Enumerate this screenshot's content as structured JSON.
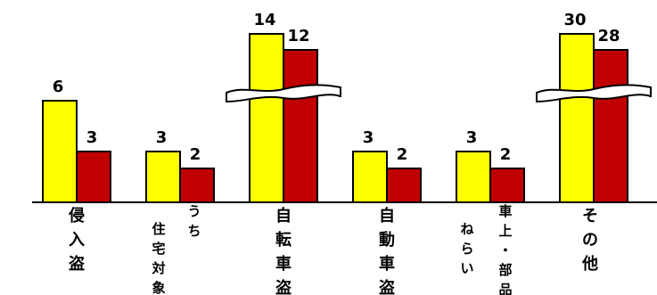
{
  "chart_data": {
    "type": "bar",
    "axis_break": true,
    "legend": "none",
    "grid": false,
    "colors": {
      "series_a": "#ffff00",
      "series_b": "#c00000",
      "outline": "#000000"
    },
    "categories": [
      {
        "label_lines": [
          "侵",
          "入",
          "盗"
        ]
      },
      {
        "label_lines": [
          "う",
          "ち",
          "住",
          "宅",
          "対",
          "象"
        ]
      },
      {
        "label_lines": [
          "自",
          "転",
          "車",
          "盗"
        ]
      },
      {
        "label_lines": [
          "自",
          "動",
          "車",
          "盗"
        ]
      },
      {
        "label_lines": [
          "車",
          "上",
          "・",
          "部",
          "品",
          "ね",
          "ら",
          "い"
        ]
      },
      {
        "label_lines": [
          "そ",
          "の",
          "他"
        ]
      }
    ],
    "series": [
      {
        "values": [
          6,
          3,
          14,
          3,
          3,
          30
        ]
      },
      {
        "values": [
          3,
          2,
          12,
          2,
          2,
          28
        ]
      }
    ],
    "value_labels": [
      [
        "6",
        "3",
        "14",
        "3",
        "3",
        "30"
      ],
      [
        "3",
        "2",
        "12",
        "2",
        "2",
        "28"
      ]
    ]
  }
}
